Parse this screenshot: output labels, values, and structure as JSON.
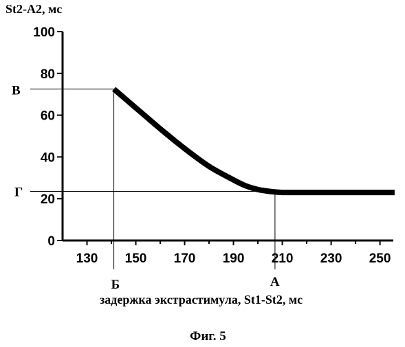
{
  "chart_data": {
    "type": "line",
    "ylabel": "St2-A2, мс",
    "xlabel": "задержка экстрастимула, St1-St2, мс",
    "caption": "Фиг. 5",
    "xlim": [
      120,
      258
    ],
    "ylim": [
      0,
      100
    ],
    "x_ticks": [
      130,
      150,
      170,
      190,
      210,
      230,
      250
    ],
    "y_ticks": [
      0,
      20,
      40,
      60,
      80,
      100
    ],
    "grid": false,
    "legend": "none",
    "series": [
      {
        "x": [
          141,
          150,
          160,
          170,
          180,
          190,
          195,
          200,
          205,
          210,
          220,
          230,
          240,
          250,
          256
        ],
        "y": [
          72.5,
          63.5,
          53.5,
          44,
          35.5,
          29,
          26.2,
          24.4,
          23.5,
          23,
          23,
          23,
          23,
          23,
          23
        ]
      }
    ],
    "markers": {
      "v_line_b": {
        "x": 141,
        "label": "Б"
      },
      "v_line_a": {
        "x": 207,
        "label": "А"
      },
      "h_line_v": {
        "y": 72.5,
        "label": "В"
      },
      "h_line_g": {
        "y": 23.5,
        "label": "Г"
      }
    }
  }
}
